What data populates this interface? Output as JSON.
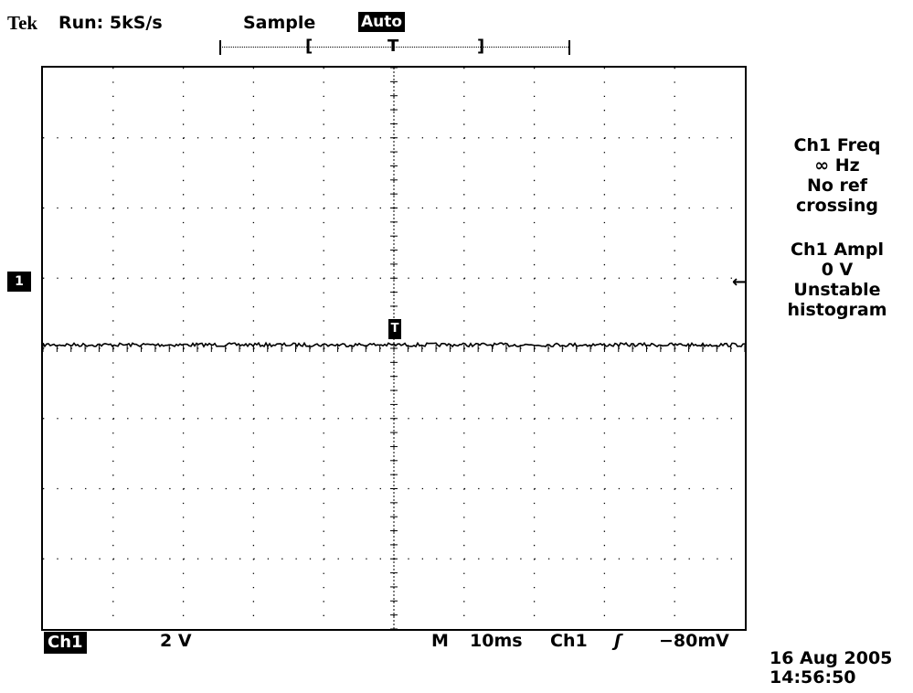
{
  "header": {
    "brand": "Tek",
    "run_status": "Run: 5kS/s",
    "acquisition_mode": "Sample",
    "trigger_mode": "Auto"
  },
  "record_bar": {
    "left_bracket": "[",
    "trigger_marker": "T",
    "right_bracket": "]"
  },
  "graticule": {
    "horizontal_divisions": 10,
    "vertical_divisions": 8,
    "trace_level_divisions_from_top": 3.95,
    "colors": {
      "background": "#ffffff",
      "grid": "#000000",
      "trace": "#000000"
    }
  },
  "markers": {
    "channel_ground": "1",
    "trigger_position": "T",
    "trigger_level": "←"
  },
  "measurements": [
    {
      "lines": [
        "Ch1 Freq",
        "∞ Hz",
        "No ref",
        "crossing"
      ]
    },
    {
      "lines": [
        "Ch1 Ampl",
        "0 V",
        "Unstable",
        "histogram"
      ]
    }
  ],
  "status_bar": {
    "channel": "Ch1",
    "volts_per_div": "2 V",
    "timebase_prefix": "M",
    "timebase": "10ms",
    "trigger_source": "Ch1",
    "trigger_slope": "ʃ",
    "trigger_level": "−80mV"
  },
  "timestamp": {
    "date": "16 Aug 2005",
    "time": "14:56:50"
  }
}
